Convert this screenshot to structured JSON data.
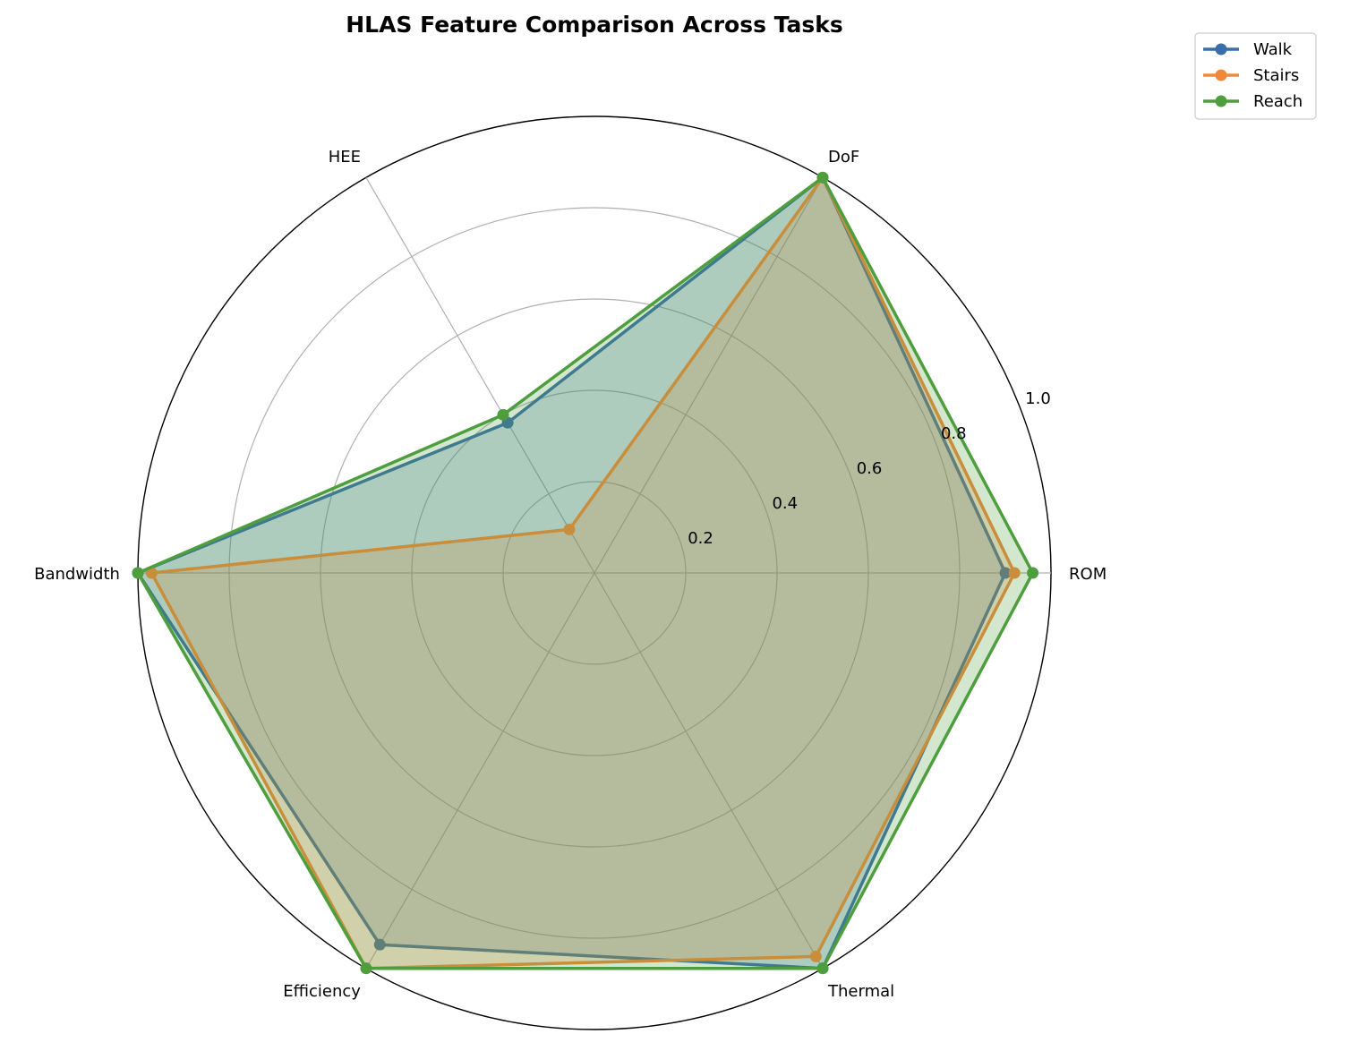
{
  "chart_data": {
    "type": "radar",
    "title": "HLAS Feature Comparison Across Tasks",
    "categories": [
      "ROM",
      "DoF",
      "HEE",
      "Bandwidth",
      "Efficiency",
      "Thermal"
    ],
    "rlim": [
      0,
      1.0
    ],
    "r_ticks": [
      0.2,
      0.4,
      0.6,
      0.8,
      1.0
    ],
    "r_tick_labels": [
      "0.2",
      "0.4",
      "0.6",
      "0.8",
      "1.0"
    ],
    "grid": true,
    "legend": "top-right",
    "series": [
      {
        "name": "Walk",
        "color": "#3a6ea8",
        "values": [
          0.9,
          1.0,
          0.38,
          1.0,
          0.94,
          1.0
        ]
      },
      {
        "name": "Stairs",
        "color": "#f0883a",
        "values": [
          0.92,
          1.0,
          0.11,
          0.97,
          1.0,
          0.97
        ]
      },
      {
        "name": "Reach",
        "color": "#4e9e3e",
        "values": [
          0.96,
          1.0,
          0.4,
          1.0,
          1.0,
          1.0
        ]
      }
    ]
  }
}
